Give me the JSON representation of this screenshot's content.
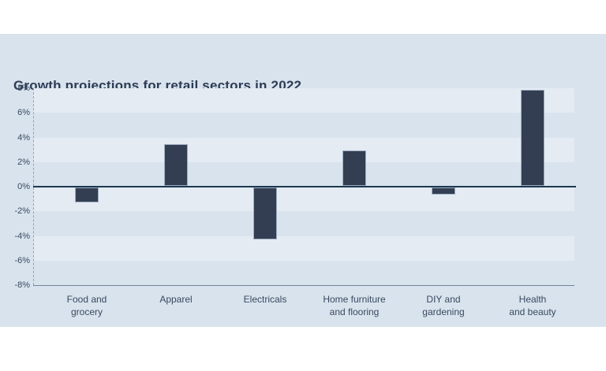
{
  "panel": {
    "bg": "#d8e3ed"
  },
  "chart_data": {
    "type": "bar",
    "title": "Growth projections for retail sectors in 2022",
    "categories": [
      [
        "Food and",
        "grocery"
      ],
      [
        "Apparel"
      ],
      [
        "Electricals"
      ],
      [
        "Home furniture",
        "and flooring"
      ],
      [
        "DIY and",
        "gardening"
      ],
      [
        "Health",
        "and beauty"
      ]
    ],
    "values": [
      -1.2,
      3.4,
      -4.2,
      2.9,
      -0.6,
      7.8
    ],
    "unit": "%",
    "xlabel": "",
    "ylabel": "",
    "ylim": [
      -8,
      8
    ],
    "ytick_step": 2,
    "ytick_labels": [
      "8%",
      "6%",
      "4%",
      "2%",
      "0%",
      "-2%",
      "-4%",
      "-6%",
      "-8%"
    ],
    "grid": "horizontal striped bands every 2%",
    "legend_position": "none",
    "colors": {
      "bar": "#333e52",
      "bar_edge": "#9fafc2",
      "band_light": "#e4ebf3",
      "band_dark": "transparent",
      "zero_line": "#1c3a50",
      "bottom_axis": "#72859a",
      "tick_text": "#3a4960",
      "title_text": "#2d3c55",
      "panel_bg": "#d8e3ed"
    }
  }
}
